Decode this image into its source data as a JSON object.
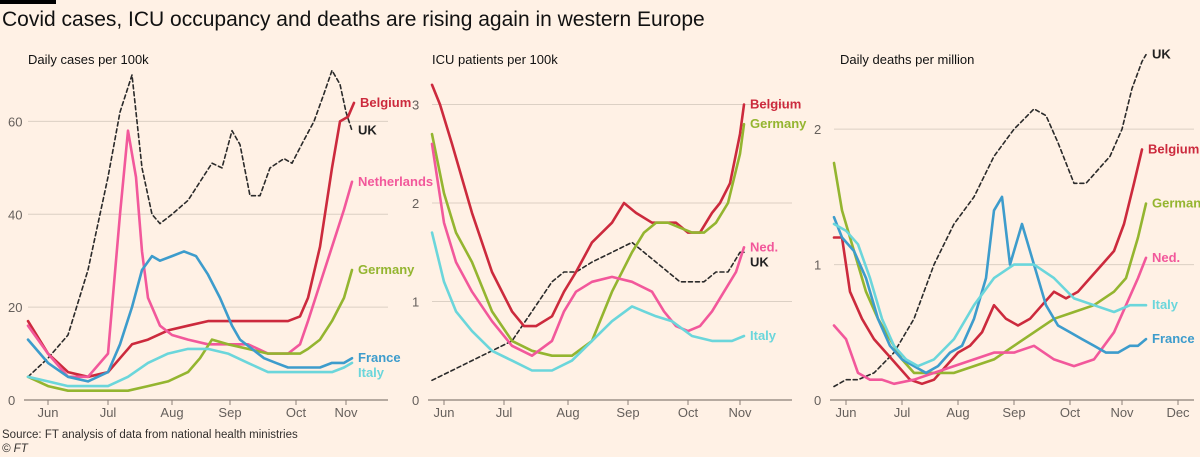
{
  "headline": "Covid cases, ICU occupancy and deaths are rising again in western Europe",
  "source": "Source: FT analysis of data from national health ministries",
  "copyright": "© FT",
  "colors": {
    "UK": "#2a2a2a",
    "Belgium": "#cc2a3d",
    "Netherlands": "#f2589b",
    "Germany": "#94b530",
    "France": "#3d9ccc",
    "Italy": "#6bd6db",
    "grid": "#dcd0c4",
    "axis": "#8b7f77"
  },
  "chart_data": [
    {
      "type": "line",
      "title": "Daily cases per 100k",
      "x_ticks": [
        "Jun",
        "Jul",
        "Aug",
        "Sep",
        "Oct",
        "Nov"
      ],
      "x_tick_pos": [
        0.5,
        2,
        3.6,
        5.05,
        6.7,
        7.95
      ],
      "xlim": [
        0,
        9
      ],
      "y_ticks": [
        0,
        20,
        40,
        60
      ],
      "ylim": [
        0,
        70
      ],
      "series": [
        {
          "name": "UK",
          "dashed": true,
          "label": "UK",
          "x": [
            0,
            0.5,
            1,
            1.5,
            2,
            2.3,
            2.6,
            2.85,
            3.1,
            3.3,
            3.6,
            4,
            4.3,
            4.6,
            4.85,
            5.1,
            5.3,
            5.55,
            5.8,
            6.05,
            6.4,
            6.6,
            6.9,
            7.15,
            7.4,
            7.6,
            7.8,
            7.95,
            8.1
          ],
          "y": [
            5,
            9,
            14,
            28,
            48,
            62,
            70,
            50,
            40,
            38,
            40,
            43,
            47,
            51,
            50,
            58,
            55,
            44,
            44,
            50,
            52,
            51,
            56,
            60,
            66,
            71,
            68,
            62,
            58
          ]
        },
        {
          "name": "Belgium",
          "label": "Belgium",
          "x": [
            0,
            0.5,
            1,
            1.5,
            2,
            2.3,
            2.6,
            3,
            3.5,
            4,
            4.5,
            5,
            5.5,
            6,
            6.5,
            6.8,
            7,
            7.3,
            7.6,
            7.8,
            8,
            8.15
          ],
          "y": [
            17,
            10,
            6,
            5,
            6,
            9,
            12,
            13,
            15,
            16,
            17,
            17,
            17,
            17,
            17,
            18,
            22,
            33,
            50,
            60,
            61,
            64
          ]
        },
        {
          "name": "Netherlands",
          "label": "Netherlands",
          "x": [
            0,
            0.5,
            1,
            1.5,
            2,
            2.3,
            2.5,
            2.7,
            2.85,
            3,
            3.3,
            3.6,
            4,
            4.5,
            5,
            5.5,
            6,
            6.5,
            6.8,
            7,
            7.3,
            7.6,
            7.9,
            8.1
          ],
          "y": [
            16,
            10,
            5,
            5,
            10,
            40,
            58,
            48,
            32,
            22,
            16,
            14,
            13,
            12,
            12,
            12,
            10,
            10,
            12,
            17,
            25,
            33,
            41,
            47
          ]
        },
        {
          "name": "Germany",
          "label": "Germany",
          "x": [
            0,
            0.5,
            1,
            1.5,
            2,
            2.5,
            3,
            3.5,
            4,
            4.3,
            4.6,
            5,
            5.5,
            6,
            6.5,
            6.8,
            7,
            7.3,
            7.6,
            7.9,
            8.1
          ],
          "y": [
            5,
            3,
            2,
            2,
            2,
            2,
            3,
            4,
            6,
            9,
            13,
            12,
            11,
            10,
            10,
            10,
            11,
            13,
            17,
            22,
            28
          ]
        },
        {
          "name": "France",
          "label": "France",
          "x": [
            0,
            0.5,
            1,
            1.5,
            2,
            2.3,
            2.6,
            2.85,
            3.1,
            3.3,
            3.6,
            3.9,
            4.2,
            4.5,
            4.8,
            5.1,
            5.3,
            5.6,
            5.9,
            6.2,
            6.5,
            6.8,
            7,
            7.3,
            7.6,
            7.9,
            8.1
          ],
          "y": [
            13,
            8,
            5,
            4,
            6,
            12,
            20,
            28,
            31,
            30,
            31,
            32,
            31,
            27,
            22,
            16,
            13,
            11,
            9,
            8,
            7,
            7,
            7,
            7,
            8,
            8,
            9
          ]
        },
        {
          "name": "Italy",
          "label": "Italy",
          "x": [
            0,
            0.5,
            1,
            1.5,
            2,
            2.5,
            3,
            3.5,
            4,
            4.5,
            5,
            5.5,
            6,
            6.5,
            6.8,
            7,
            7.3,
            7.6,
            7.9,
            8.1
          ],
          "y": [
            5,
            4,
            3,
            3,
            3,
            5,
            8,
            10,
            11,
            11,
            10,
            8,
            6,
            6,
            6,
            6,
            6,
            6,
            7,
            8
          ]
        }
      ]
    },
    {
      "type": "line",
      "title": "ICU patients per 100k",
      "x_ticks": [
        "Jun",
        "Jul",
        "Aug",
        "Sep",
        "Oct",
        "Nov"
      ],
      "x_tick_pos": [
        0.3,
        1.8,
        3.4,
        4.9,
        6.4,
        7.7
      ],
      "xlim": [
        0,
        9
      ],
      "y_ticks": [
        0,
        1,
        2,
        3
      ],
      "ylim": [
        0,
        3.3
      ],
      "series": [
        {
          "name": "UK",
          "dashed": true,
          "label": "UK",
          "x": [
            0,
            0.5,
            1,
            1.5,
            2,
            2.5,
            3,
            3.3,
            3.6,
            4,
            4.5,
            5,
            5.3,
            5.6,
            5.9,
            6.2,
            6.5,
            6.8,
            7.1,
            7.4,
            7.7,
            7.8
          ],
          "y": [
            0.2,
            0.3,
            0.4,
            0.5,
            0.6,
            0.9,
            1.2,
            1.3,
            1.3,
            1.4,
            1.5,
            1.6,
            1.5,
            1.4,
            1.3,
            1.2,
            1.2,
            1.2,
            1.3,
            1.3,
            1.5,
            1.5
          ]
        },
        {
          "name": "Belgium",
          "label": "Belgium",
          "x": [
            0,
            0.2,
            0.5,
            1,
            1.5,
            2,
            2.3,
            2.6,
            3,
            3.3,
            3.6,
            4,
            4.5,
            4.8,
            5.1,
            5.5,
            5.8,
            6.1,
            6.4,
            6.7,
            7,
            7.2,
            7.45,
            7.7,
            7.8
          ],
          "y": [
            3.2,
            3,
            2.6,
            1.9,
            1.3,
            0.9,
            0.75,
            0.75,
            0.85,
            1.1,
            1.3,
            1.6,
            1.8,
            2,
            1.9,
            1.8,
            1.8,
            1.8,
            1.7,
            1.7,
            1.9,
            2,
            2.2,
            2.7,
            3
          ]
        },
        {
          "name": "Germany",
          "label": "Germany",
          "x": [
            0,
            0.3,
            0.6,
            1,
            1.5,
            2,
            2.5,
            3,
            3.5,
            4,
            4.5,
            5,
            5.3,
            5.6,
            5.9,
            6.2,
            6.5,
            6.8,
            7.1,
            7.4,
            7.7,
            7.8
          ],
          "y": [
            2.7,
            2.1,
            1.7,
            1.4,
            0.9,
            0.6,
            0.5,
            0.45,
            0.45,
            0.6,
            1.1,
            1.5,
            1.7,
            1.8,
            1.8,
            1.75,
            1.7,
            1.7,
            1.8,
            2,
            2.5,
            2.8
          ]
        },
        {
          "name": "Netherlands",
          "label": "Ned.",
          "x": [
            0,
            0.3,
            0.6,
            1,
            1.5,
            2,
            2.5,
            3,
            3.3,
            3.6,
            4,
            4.5,
            5,
            5.5,
            5.8,
            6.1,
            6.4,
            6.7,
            7,
            7.3,
            7.6,
            7.8
          ],
          "y": [
            2.6,
            1.8,
            1.4,
            1.1,
            0.8,
            0.55,
            0.45,
            0.6,
            0.9,
            1.1,
            1.2,
            1.25,
            1.2,
            1.1,
            0.9,
            0.75,
            0.7,
            0.75,
            0.9,
            1.1,
            1.3,
            1.55
          ]
        },
        {
          "name": "Italy",
          "label": "Italy",
          "x": [
            0,
            0.3,
            0.6,
            1,
            1.5,
            2,
            2.5,
            3,
            3.5,
            4,
            4.5,
            5,
            5.3,
            5.6,
            6,
            6.5,
            7,
            7.5,
            7.8
          ],
          "y": [
            1.7,
            1.2,
            0.9,
            0.7,
            0.5,
            0.4,
            0.3,
            0.3,
            0.4,
            0.6,
            0.8,
            0.95,
            0.9,
            0.85,
            0.8,
            0.65,
            0.6,
            0.6,
            0.65
          ]
        }
      ]
    },
    {
      "type": "line",
      "title": "Daily deaths per million",
      "x_ticks": [
        "Jun",
        "Jul",
        "Aug",
        "Sep",
        "Oct",
        "Nov",
        "Dec"
      ],
      "x_tick_pos": [
        0.3,
        1.7,
        3.1,
        4.5,
        5.9,
        7.2,
        8.6
      ],
      "xlim": [
        0,
        9
      ],
      "y_ticks": [
        0,
        1,
        2
      ],
      "ylim": [
        0,
        2.4
      ],
      "series": [
        {
          "name": "UK",
          "dashed": true,
          "label": "UK",
          "x": [
            0,
            0.3,
            0.6,
            1,
            1.5,
            2,
            2.5,
            3,
            3.5,
            4,
            4.5,
            5,
            5.3,
            5.6,
            6,
            6.3,
            6.6,
            6.9,
            7.2,
            7.45,
            7.7,
            7.8
          ],
          "y": [
            0.1,
            0.15,
            0.15,
            0.2,
            0.35,
            0.6,
            1,
            1.3,
            1.5,
            1.8,
            2,
            2.15,
            2.1,
            1.9,
            1.6,
            1.6,
            1.7,
            1.8,
            2,
            2.3,
            2.5,
            2.55
          ]
        },
        {
          "name": "Belgium",
          "label": "Belgium",
          "x": [
            0,
            0.2,
            0.4,
            0.7,
            1,
            1.3,
            1.6,
            1.9,
            2.2,
            2.5,
            2.8,
            3.1,
            3.4,
            3.7,
            4,
            4.3,
            4.6,
            4.9,
            5.2,
            5.5,
            5.8,
            6.1,
            6.4,
            6.7,
            7,
            7.25,
            7.5,
            7.7
          ],
          "y": [
            1.2,
            1.2,
            0.8,
            0.6,
            0.45,
            0.35,
            0.25,
            0.15,
            0.12,
            0.15,
            0.25,
            0.35,
            0.4,
            0.5,
            0.7,
            0.6,
            0.55,
            0.6,
            0.7,
            0.8,
            0.75,
            0.8,
            0.9,
            1,
            1.1,
            1.3,
            1.6,
            1.85
          ]
        },
        {
          "name": "Germany",
          "label": "Germany",
          "x": [
            0,
            0.2,
            0.5,
            0.8,
            1.1,
            1.4,
            1.7,
            2,
            2.5,
            3,
            3.5,
            4,
            4.5,
            5,
            5.5,
            6,
            6.5,
            7,
            7.3,
            7.6,
            7.8
          ],
          "y": [
            1.75,
            1.4,
            1.1,
            0.8,
            0.6,
            0.45,
            0.3,
            0.2,
            0.2,
            0.2,
            0.25,
            0.3,
            0.4,
            0.5,
            0.6,
            0.65,
            0.7,
            0.8,
            0.9,
            1.2,
            1.45
          ]
        },
        {
          "name": "Netherlands",
          "label": "Ned.",
          "x": [
            0,
            0.3,
            0.6,
            0.9,
            1.2,
            1.5,
            2,
            2.5,
            3,
            3.5,
            4,
            4.5,
            5,
            5.5,
            6,
            6.5,
            7,
            7.3,
            7.6,
            7.8
          ],
          "y": [
            0.55,
            0.45,
            0.2,
            0.15,
            0.15,
            0.12,
            0.15,
            0.2,
            0.25,
            0.3,
            0.35,
            0.35,
            0.4,
            0.3,
            0.25,
            0.3,
            0.5,
            0.7,
            0.9,
            1.05
          ]
        },
        {
          "name": "France",
          "label": "France",
          "x": [
            0,
            0.2,
            0.5,
            0.8,
            1.1,
            1.4,
            1.7,
            2,
            2.3,
            2.6,
            2.9,
            3.2,
            3.5,
            3.8,
            4,
            4.2,
            4.4,
            4.7,
            5,
            5.3,
            5.6,
            5.9,
            6.2,
            6.5,
            6.8,
            7.1,
            7.4,
            7.6,
            7.8
          ],
          "y": [
            1.35,
            1.2,
            1.1,
            0.9,
            0.6,
            0.4,
            0.3,
            0.25,
            0.2,
            0.25,
            0.35,
            0.4,
            0.6,
            0.9,
            1.4,
            1.5,
            1.0,
            1.3,
            1.0,
            0.7,
            0.55,
            0.5,
            0.45,
            0.4,
            0.35,
            0.35,
            0.4,
            0.4,
            0.45
          ]
        },
        {
          "name": "Italy",
          "label": "Italy",
          "x": [
            0,
            0.3,
            0.6,
            0.9,
            1.2,
            1.5,
            1.8,
            2.1,
            2.5,
            3,
            3.5,
            4,
            4.5,
            5,
            5.5,
            6,
            6.5,
            7,
            7.4,
            7.8
          ],
          "y": [
            1.3,
            1.25,
            1.15,
            0.9,
            0.6,
            0.4,
            0.3,
            0.25,
            0.3,
            0.45,
            0.7,
            0.9,
            1.0,
            1.0,
            0.9,
            0.75,
            0.7,
            0.65,
            0.7,
            0.7
          ]
        }
      ]
    }
  ]
}
